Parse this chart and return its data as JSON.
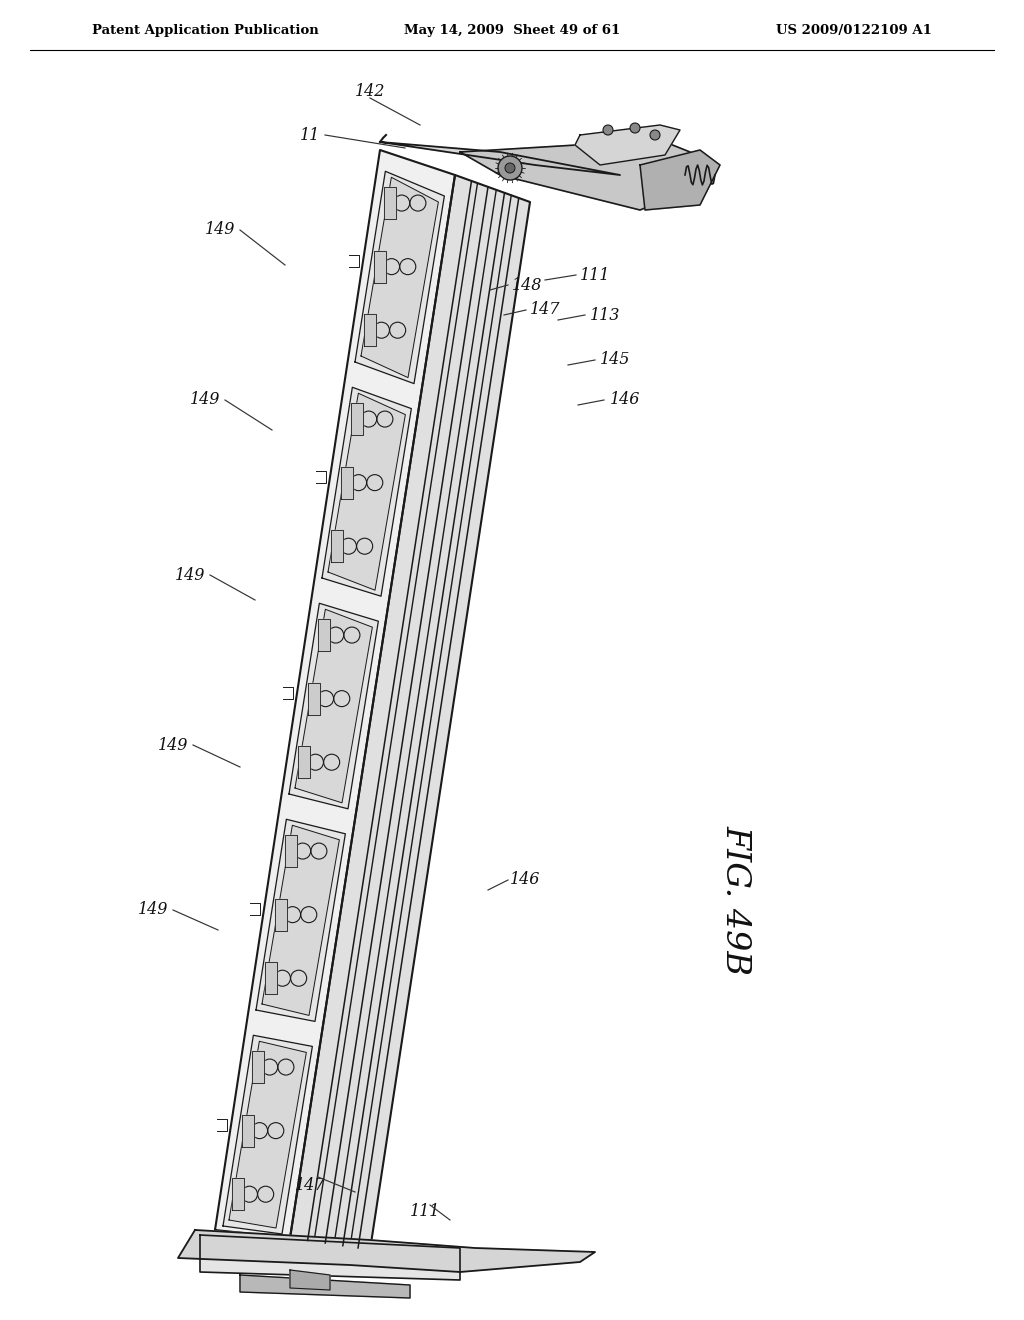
{
  "bg_color": "#ffffff",
  "header_left": "Patent Application Publication",
  "header_mid": "May 14, 2009  Sheet 49 of 61",
  "header_right": "US 2009/0122109 A1",
  "fig_label": "FIG. 49B",
  "line_color": "#1a1a1a",
  "light_fill": "#f0f0f0",
  "mid_fill": "#d8d8d8",
  "dark_fill": "#b0b0b0",
  "label_fontsize": 11.5
}
